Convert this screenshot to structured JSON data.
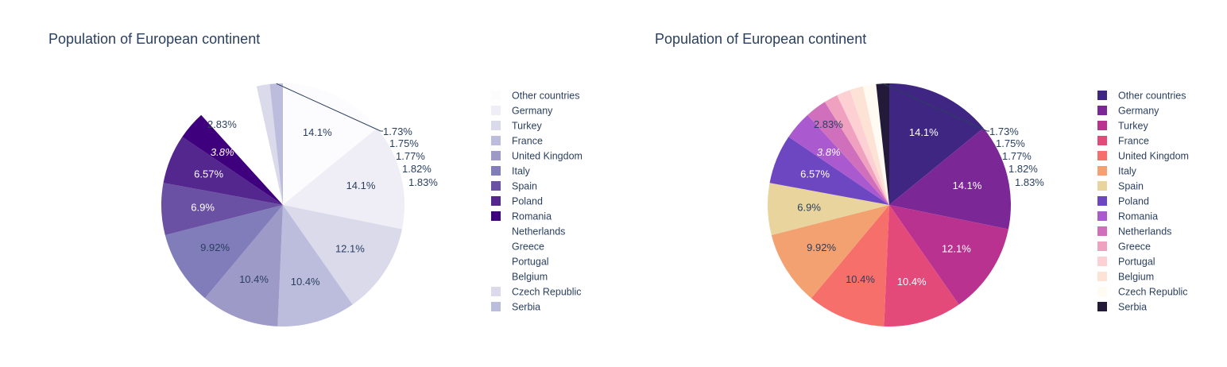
{
  "chart_data": [
    {
      "type": "pie",
      "title": "Population of European continent",
      "categories": [
        "Other countries",
        "Germany",
        "Turkey",
        "France",
        "United Kingdom",
        "Italy",
        "Spain",
        "Poland",
        "Romania",
        "Netherlands",
        "Greece",
        "Portugal",
        "Belgium",
        "Czech Republic",
        "Serbia"
      ],
      "values": [
        14.1,
        14.1,
        12.1,
        10.4,
        10.4,
        9.92,
        6.9,
        6.57,
        3.8,
        2.83,
        1.83,
        1.82,
        1.77,
        1.75,
        1.73
      ],
      "labels": [
        "14.1%",
        "14.1%",
        "12.1%",
        "10.4%",
        "10.4%",
        "9.92%",
        "6.9%",
        "6.57%",
        "3.8%",
        "2.83%",
        "1.83%",
        "1.82%",
        "1.77%",
        "1.75%",
        "1.73%"
      ],
      "colors": [
        "#fcfbfd",
        "#efedf5",
        "#dadaeb",
        "#bcbddc",
        "#9e9ac8",
        "#807dba",
        "#6a51a3",
        "#54278f",
        "#3f007d",
        "#ffffff",
        "#ffffff",
        "#ffffff",
        "#ffffff",
        "#dadaeb",
        "#bcbddc"
      ],
      "legend_position": "right"
    },
    {
      "type": "pie",
      "title": "Population of European continent",
      "categories": [
        "Other countries",
        "Germany",
        "Turkey",
        "France",
        "United Kingdom",
        "Italy",
        "Spain",
        "Poland",
        "Romania",
        "Netherlands",
        "Greece",
        "Portugal",
        "Belgium",
        "Czech Republic",
        "Serbia"
      ],
      "values": [
        14.1,
        14.1,
        12.1,
        10.4,
        10.4,
        9.92,
        6.9,
        6.57,
        3.8,
        2.83,
        1.83,
        1.82,
        1.77,
        1.75,
        1.73
      ],
      "labels": [
        "14.1%",
        "14.1%",
        "12.1%",
        "10.4%",
        "10.4%",
        "9.92%",
        "6.9%",
        "6.57%",
        "3.8%",
        "2.83%",
        "1.83%",
        "1.82%",
        "1.77%",
        "1.75%",
        "1.73%"
      ],
      "colors": [
        "#3f2683",
        "#7b2896",
        "#b9328f",
        "#e34a7a",
        "#f76f6a",
        "#f4a172",
        "#e8d49c",
        "#6d47c2",
        "#aa59cf",
        "#d070bd",
        "#f1a1c0",
        "#fdd1d4",
        "#fde3d6",
        "#fffaf2",
        "#231a3a"
      ],
      "legend_position": "right"
    }
  ]
}
